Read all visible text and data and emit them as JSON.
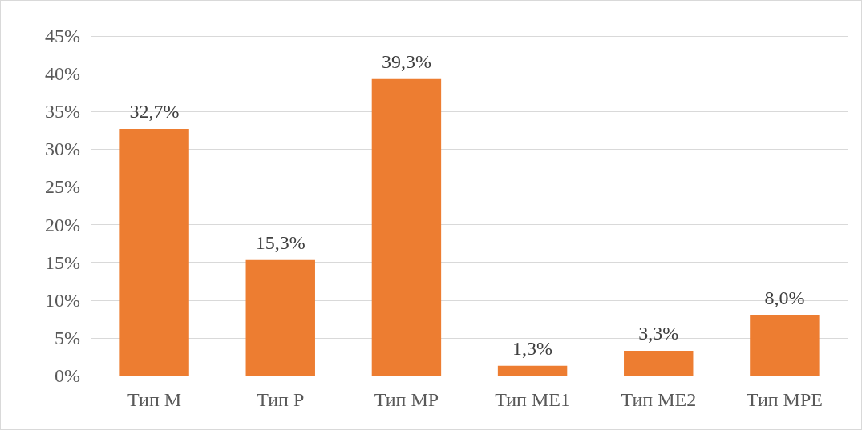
{
  "chart_data": {
    "type": "bar",
    "categories": [
      "Тип M",
      "Тип P",
      "Тип MP",
      "Тип ME1",
      "Тип ME2",
      "Тип MPE"
    ],
    "values": [
      32.7,
      15.3,
      39.3,
      1.3,
      3.3,
      8.0
    ],
    "value_labels": [
      "32,7%",
      "15,3%",
      "39,3%",
      "1,3%",
      "3,3%",
      "8,0%"
    ],
    "color": "#ed7d31",
    "ylim": [
      0,
      45
    ],
    "yticks": [
      {
        "value": 0,
        "label": "0%"
      },
      {
        "value": 5,
        "label": "5%"
      },
      {
        "value": 10,
        "label": "10%"
      },
      {
        "value": 15,
        "label": "15%"
      },
      {
        "value": 20,
        "label": "20%"
      },
      {
        "value": 25,
        "label": "25%"
      },
      {
        "value": 30,
        "label": "30%"
      },
      {
        "value": 35,
        "label": "35%"
      },
      {
        "value": 40,
        "label": "40%"
      },
      {
        "value": 45,
        "label": "45%"
      }
    ],
    "grid": "y"
  }
}
